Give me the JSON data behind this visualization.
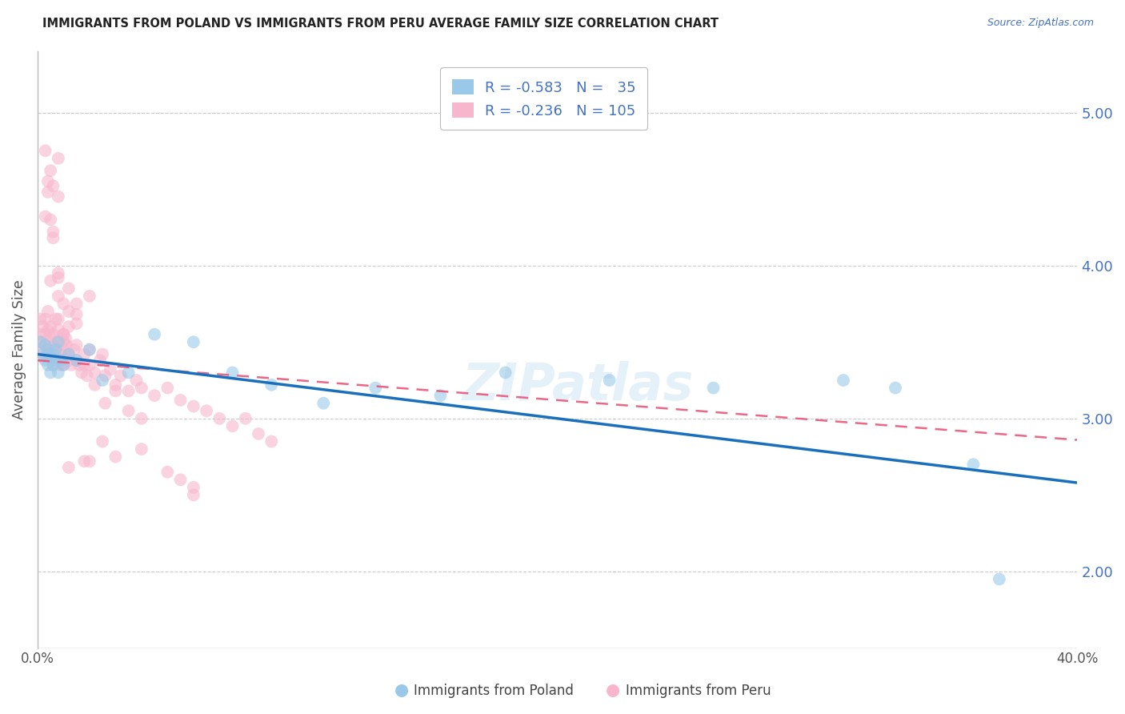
{
  "title": "IMMIGRANTS FROM POLAND VS IMMIGRANTS FROM PERU AVERAGE FAMILY SIZE CORRELATION CHART",
  "source_text": "Source: ZipAtlas.com",
  "ylabel": "Average Family Size",
  "yticks_right": [
    2.0,
    3.0,
    4.0,
    5.0
  ],
  "legend_poland_label": "Immigrants from Poland",
  "legend_peru_label": "Immigrants from Peru",
  "r_poland": "-0.583",
  "n_poland": "35",
  "r_peru": "-0.236",
  "n_peru": "105",
  "color_poland": "#9ac8e8",
  "color_peru": "#f7b6cc",
  "trendline_poland": "#1a6fbd",
  "trendline_peru": "#e8567a",
  "background": "#ffffff",
  "grid_color": "#cccccc",
  "right_label_color": "#4472c4",
  "title_color": "#222222",
  "watermark": "ZIPatlas",
  "xlim": [
    0.0,
    0.4
  ],
  "ylim": [
    1.5,
    5.4
  ],
  "poland_x": [
    0.001,
    0.002,
    0.003,
    0.003,
    0.004,
    0.004,
    0.005,
    0.005,
    0.006,
    0.006,
    0.007,
    0.007,
    0.008,
    0.008,
    0.009,
    0.01,
    0.012,
    0.015,
    0.02,
    0.025,
    0.035,
    0.045,
    0.06,
    0.075,
    0.09,
    0.11,
    0.13,
    0.155,
    0.18,
    0.22,
    0.26,
    0.31,
    0.33,
    0.36,
    0.37
  ],
  "poland_y": [
    3.5,
    3.42,
    3.48,
    3.38,
    3.45,
    3.35,
    3.4,
    3.3,
    3.42,
    3.35,
    3.45,
    3.38,
    3.3,
    3.5,
    3.38,
    3.35,
    3.42,
    3.38,
    3.45,
    3.25,
    3.3,
    3.55,
    3.5,
    3.3,
    3.22,
    3.1,
    3.2,
    3.15,
    3.3,
    3.25,
    3.2,
    3.25,
    3.2,
    2.7,
    1.95
  ],
  "peru_x": [
    0.001,
    0.001,
    0.001,
    0.002,
    0.002,
    0.002,
    0.003,
    0.003,
    0.003,
    0.004,
    0.004,
    0.004,
    0.005,
    0.005,
    0.005,
    0.006,
    0.006,
    0.006,
    0.007,
    0.007,
    0.007,
    0.008,
    0.008,
    0.008,
    0.009,
    0.009,
    0.01,
    0.01,
    0.011,
    0.011,
    0.012,
    0.012,
    0.013,
    0.014,
    0.015,
    0.016,
    0.017,
    0.018,
    0.019,
    0.02,
    0.022,
    0.024,
    0.026,
    0.028,
    0.03,
    0.032,
    0.035,
    0.038,
    0.04,
    0.045,
    0.05,
    0.055,
    0.06,
    0.065,
    0.07,
    0.075,
    0.08,
    0.085,
    0.09,
    0.01,
    0.008,
    0.006,
    0.005,
    0.015,
    0.012,
    0.008,
    0.006,
    0.004,
    0.003,
    0.005,
    0.007,
    0.01,
    0.015,
    0.02,
    0.025,
    0.012,
    0.008,
    0.02,
    0.015,
    0.01,
    0.005,
    0.008,
    0.003,
    0.004,
    0.006,
    0.008,
    0.01,
    0.012,
    0.015,
    0.018,
    0.022,
    0.026,
    0.03,
    0.035,
    0.04,
    0.025,
    0.018,
    0.012,
    0.05,
    0.06,
    0.04,
    0.03,
    0.02,
    0.06,
    0.055
  ],
  "peru_y": [
    3.45,
    3.55,
    3.65,
    3.5,
    3.6,
    3.4,
    3.55,
    3.48,
    3.65,
    3.58,
    3.7,
    3.42,
    3.52,
    3.45,
    3.6,
    3.55,
    3.48,
    3.35,
    3.45,
    3.5,
    3.4,
    3.58,
    3.65,
    3.38,
    3.42,
    3.35,
    3.5,
    3.45,
    3.48,
    3.52,
    3.38,
    3.42,
    3.35,
    3.45,
    3.38,
    3.35,
    3.3,
    3.42,
    3.28,
    3.35,
    3.3,
    3.38,
    3.28,
    3.32,
    3.22,
    3.28,
    3.18,
    3.25,
    3.2,
    3.15,
    3.2,
    3.12,
    3.08,
    3.05,
    3.0,
    2.95,
    3.0,
    2.9,
    2.85,
    3.35,
    3.8,
    4.52,
    4.3,
    3.75,
    3.85,
    4.45,
    4.18,
    4.55,
    4.32,
    3.9,
    3.65,
    3.55,
    3.62,
    3.8,
    3.42,
    3.7,
    3.92,
    3.45,
    3.68,
    3.55,
    4.62,
    4.7,
    4.75,
    4.48,
    4.22,
    3.95,
    3.75,
    3.6,
    3.48,
    3.35,
    3.22,
    3.1,
    3.18,
    3.05,
    3.0,
    2.85,
    2.72,
    2.68,
    2.65,
    2.5,
    2.8,
    2.75,
    2.72,
    2.55,
    2.6
  ]
}
